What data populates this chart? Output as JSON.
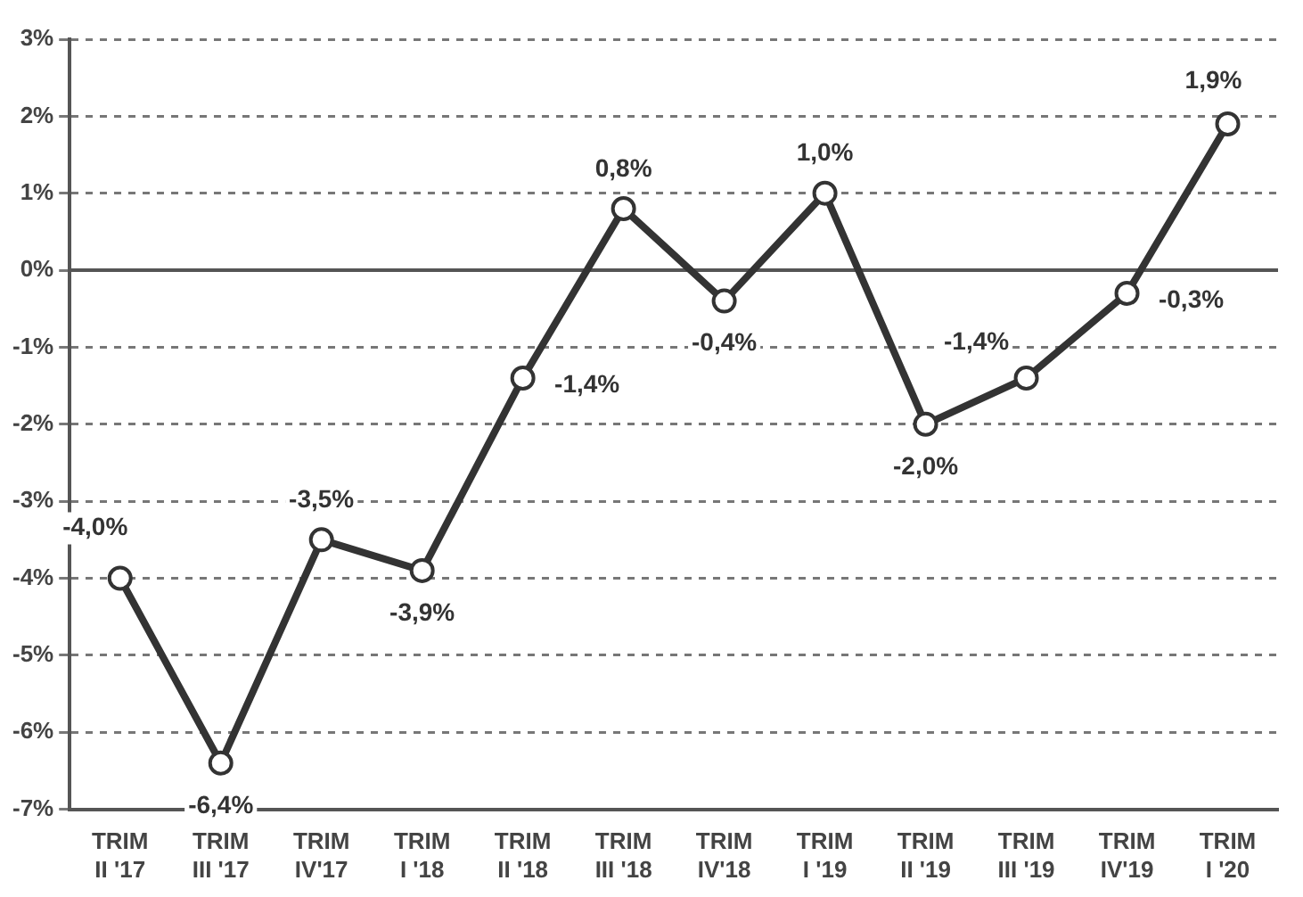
{
  "chart_data": {
    "type": "line",
    "categories": [
      "TRIM\nII '17",
      "TRIM\nIII '17",
      "TRIM\nIV'17",
      "TRIM\nI '18",
      "TRIM\nII '18",
      "TRIM\nIII '18",
      "TRIM\nIV'18",
      "TRIM\nI '19",
      "TRIM\nII '19",
      "TRIM\nIII '19",
      "TRIM\nIV'19",
      "TRIM\nI '20"
    ],
    "series": [
      {
        "color": "#333333",
        "values": [
          -4.0,
          -6.4,
          -3.5,
          -3.9,
          -1.4,
          0.8,
          -0.4,
          1.0,
          -2.0,
          -1.4,
          -0.3,
          1.9
        ],
        "value_labels": [
          "-4,0%",
          "-6,4%",
          "-3,5%",
          "-3,9%",
          "-1,4%",
          "0,8%",
          "-0,4%",
          "1,0%",
          "-2,0%",
          "-1,4%",
          "-0,3%",
          "1,9%"
        ]
      }
    ],
    "ylim": [
      -7,
      3
    ],
    "yticks": [
      {
        "value": -7,
        "label": "-7%"
      },
      {
        "value": -6,
        "label": "-6%"
      },
      {
        "value": -5,
        "label": "-5%"
      },
      {
        "value": -4,
        "label": "-4%"
      },
      {
        "value": -3,
        "label": "-3%"
      },
      {
        "value": -2,
        "label": "-2%"
      },
      {
        "value": -1,
        "label": "-1%"
      },
      {
        "value": 0,
        "label": "0%"
      },
      {
        "value": 1,
        "label": "1%"
      },
      {
        "value": 2,
        "label": "2%"
      },
      {
        "value": 3,
        "label": "3%"
      }
    ],
    "grid": "y",
    "legend": false,
    "marker": "circle",
    "line_style": "solid"
  }
}
